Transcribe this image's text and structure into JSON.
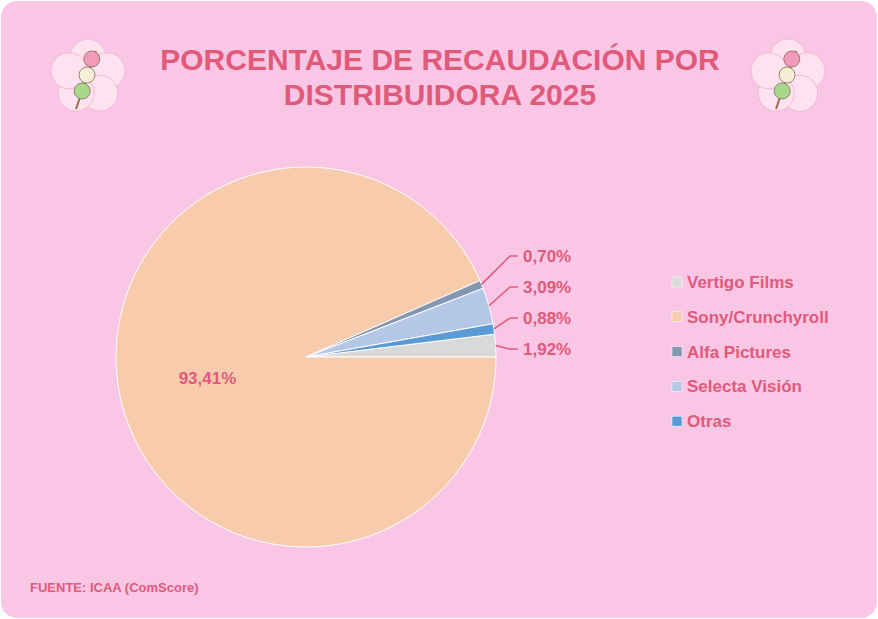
{
  "chart_data": {
    "type": "pie",
    "title": "PORCENTAJE DE RECAUDACIÓN POR DISTRIBUIDORA 2025",
    "categories": [
      "Vertigo Films",
      "Sony/Crunchyroll",
      "Alfa Pictures",
      "Selecta Visión",
      "Otras"
    ],
    "values": [
      1.92,
      93.41,
      0.7,
      3.09,
      0.88
    ],
    "value_labels": [
      "1,92%",
      "93,41%",
      "0,70%",
      "3,09%",
      "0,88%"
    ],
    "colors": [
      "#d9d9d9",
      "#f8cbad",
      "#8497b0",
      "#b4c7e7",
      "#5b9bd5"
    ],
    "legend": "right",
    "data_labels": true,
    "source": "FUENTE: ICAA (ComScore)"
  }
}
